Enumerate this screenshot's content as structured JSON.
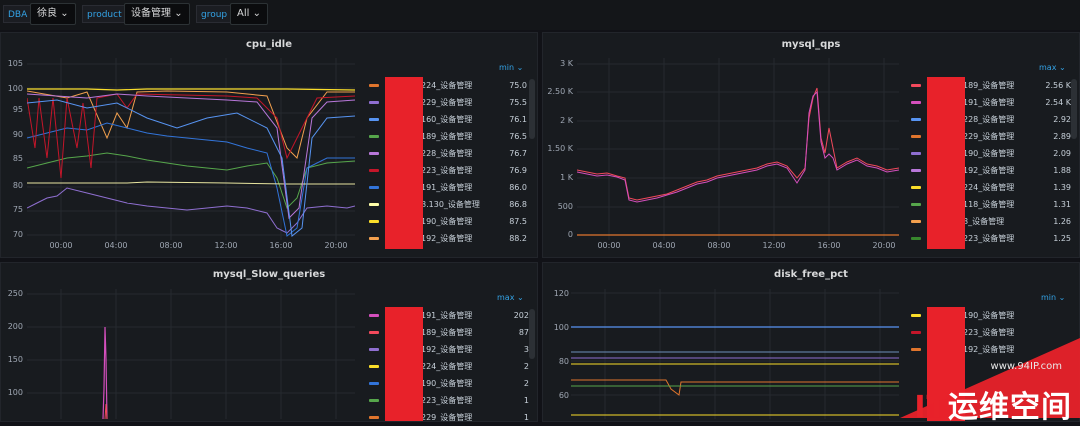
{
  "toolbar": {
    "vars": [
      {
        "label": "DBA",
        "value": "徐良"
      },
      {
        "label": "product",
        "value": "设备管理"
      },
      {
        "label": "group",
        "value": "All"
      }
    ]
  },
  "panels": {
    "cpu": {
      "title": "cpu_idle",
      "legend_header": "min",
      "yticks": [
        "105",
        "100",
        "95",
        "90",
        "85",
        "80",
        "75",
        "70"
      ],
      "xticks": [
        "00:00",
        "04:00",
        "08:00",
        "12:00",
        "16:00",
        "20:00"
      ],
      "legend": [
        {
          "name": "224_设备管理",
          "value": "75.0",
          "color": "#e0752d"
        },
        {
          "name": "229_设备管理",
          "value": "75.5",
          "color": "#8f6fd1"
        },
        {
          "name": "160_设备管理",
          "value": "76.1",
          "color": "#5794f2"
        },
        {
          "name": "189_设备管理",
          "value": "76.5",
          "color": "#56a64b"
        },
        {
          "name": "228_设备管理",
          "value": "76.7",
          "color": "#b877d9"
        },
        {
          "name": "223_设备管理",
          "value": "76.9",
          "color": "#c4162a"
        },
        {
          "name": "191_设备管理",
          "value": "86.0",
          "color": "#3274d9"
        },
        {
          "name": "8.130_设备管理",
          "value": "86.8",
          "color": "#fffea8"
        },
        {
          "name": "190_设备管理",
          "value": "87.5",
          "color": "#fade2a"
        },
        {
          "name": "192_设备管理",
          "value": "88.2",
          "color": "#f2a04e"
        }
      ]
    },
    "qps": {
      "title": "mysql_qps",
      "legend_header": "max",
      "yticks": [
        "3 K",
        "2.50 K",
        "2 K",
        "1.50 K",
        "1 K",
        "500",
        "0"
      ],
      "xticks": [
        "00:00",
        "04:00",
        "08:00",
        "12:00",
        "16:00",
        "20:00"
      ],
      "legend": [
        {
          "name": "189_设备管理",
          "value": "2.56 K",
          "color": "#f2495c"
        },
        {
          "name": "191_设备管理",
          "value": "2.54 K",
          "color": "#d44fbd"
        },
        {
          "name": "228_设备管理",
          "value": "2.92",
          "color": "#5794f2"
        },
        {
          "name": "229_设备管理",
          "value": "2.89",
          "color": "#e0752d"
        },
        {
          "name": "190_设备管理",
          "value": "2.09",
          "color": "#8f6fd1"
        },
        {
          "name": "192_设备管理",
          "value": "1.88",
          "color": "#b877d9"
        },
        {
          "name": "224_设备管理",
          "value": "1.39",
          "color": "#fade2a"
        },
        {
          "name": "118_设备管理",
          "value": "1.31",
          "color": "#56a64b"
        },
        {
          "name": "8_设备管理",
          "value": "1.26",
          "color": "#f2a04e"
        },
        {
          "name": "223_设备管理",
          "value": "1.25",
          "color": "#37872d"
        }
      ]
    },
    "slow": {
      "title": "mysql_Slow_queries",
      "legend_header": "max",
      "yticks": [
        "250",
        "200",
        "150",
        "100"
      ],
      "legend": [
        {
          "name": "191_设备管理",
          "value": "202",
          "color": "#d44fbd"
        },
        {
          "name": "189_设备管理",
          "value": "87",
          "color": "#f2495c"
        },
        {
          "name": "192_设备管理",
          "value": "3",
          "color": "#8f6fd1"
        },
        {
          "name": "224_设备管理",
          "value": "2",
          "color": "#fade2a"
        },
        {
          "name": "190_设备管理",
          "value": "2",
          "color": "#3274d9"
        },
        {
          "name": "223_设备管理",
          "value": "1",
          "color": "#56a64b"
        },
        {
          "name": "229_设备管理",
          "value": "1",
          "color": "#e0752d"
        }
      ]
    },
    "disk": {
      "title": "disk_free_pct",
      "legend_header": "min",
      "yticks": [
        "120",
        "100",
        "80",
        "60"
      ],
      "legend": [
        {
          "name": "190_设备管理",
          "value": "",
          "color": "#fade2a"
        },
        {
          "name": "223_设备管理",
          "value": "",
          "color": "#c4162a"
        },
        {
          "name": "192_设备管理",
          "value": "",
          "color": "#e0752d"
        }
      ]
    }
  },
  "watermark": {
    "url": "www.94IP.com",
    "brand_it": "IT",
    "brand_rest": "运维空间"
  }
}
